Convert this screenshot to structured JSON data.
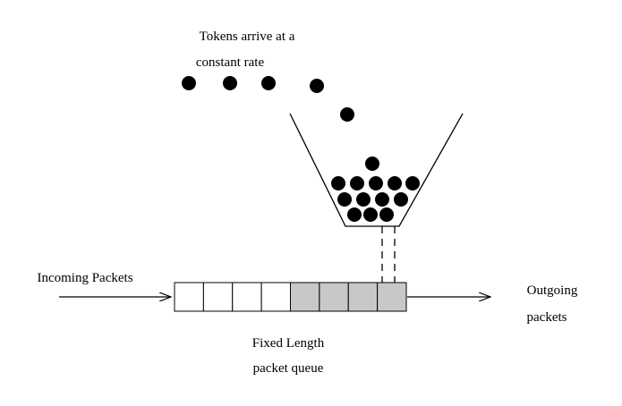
{
  "labels": {
    "tokens_line1": "Tokens arrive at a",
    "tokens_line2": "constant rate",
    "incoming": "Incoming Packets",
    "outgoing_line1": "Outgoing",
    "outgoing_line2": "packets",
    "queue_line1": "Fixed Length",
    "queue_line2": "packet queue"
  },
  "queue": {
    "total_slots": 8,
    "filled_slots": 4,
    "empty_color": "#ffffff",
    "filled_color": "#c8c8c8"
  },
  "tokens": {
    "falling_count": 5,
    "bucket_count": 13,
    "color": "#000000"
  }
}
